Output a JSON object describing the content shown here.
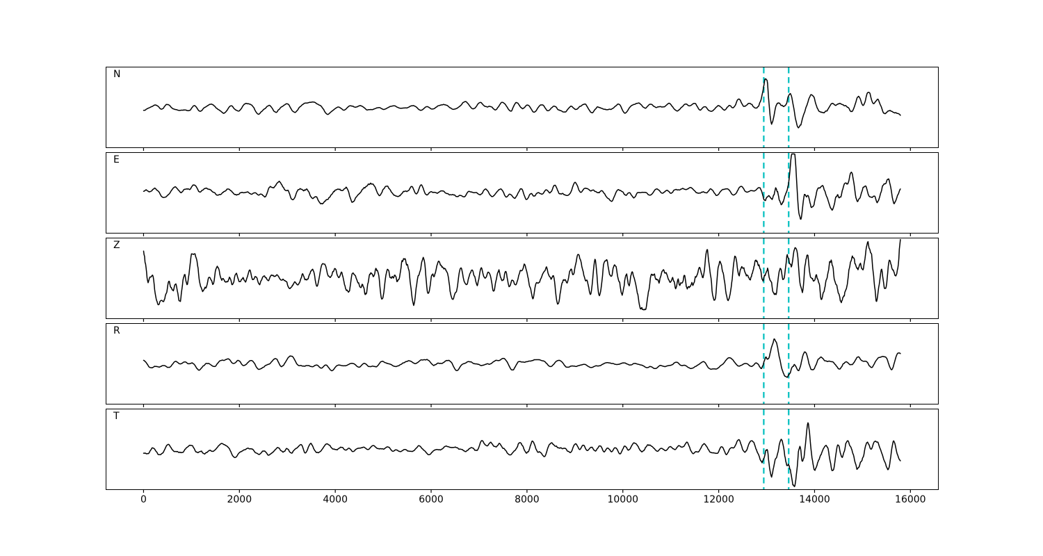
{
  "figure": {
    "background": "#ffffff",
    "border_color": "#000000",
    "trace_color": "#000000"
  },
  "chart_data": {
    "type": "line",
    "title": "",
    "xlabel": "",
    "ylabel": "",
    "x_ticks": [
      0,
      2000,
      4000,
      6000,
      8000,
      10000,
      12000,
      14000,
      16000
    ],
    "xlim": [
      -790,
      16590
    ],
    "x_start": 0,
    "x_end": 15790,
    "grid": false,
    "legend": "none",
    "vlines": {
      "x1": 12940,
      "x2": 13460,
      "color": "#00BFBF",
      "style": "dashed"
    },
    "panels": [
      {
        "label": "N",
        "seed": 11,
        "noise": 8,
        "event": 48,
        "event_x": 13060,
        "event2": 16,
        "event2_x": 13600,
        "coda": 16,
        "coda_end": 0.7,
        "smooth": 6
      },
      {
        "label": "E",
        "seed": 22,
        "noise": 11,
        "event": 36,
        "event_x": 13080,
        "event2": 30,
        "event2_x": 13580,
        "coda": 21,
        "coda_end": 0.6,
        "smooth": 5
      },
      {
        "label": "Z",
        "seed": 33,
        "noise": 30,
        "event": 14,
        "event_x": 13100,
        "event2": 10,
        "event2_x": 13600,
        "coda": 31,
        "coda_end": 0.95,
        "smooth": 4
      },
      {
        "label": "R",
        "seed": 44,
        "noise": 8,
        "event": 54,
        "event_x": 13060,
        "event2": 12,
        "event2_x": 13560,
        "coda": 13,
        "coda_end": 0.7,
        "smooth": 6
      },
      {
        "label": "T",
        "seed": 55,
        "noise": 10,
        "event": 32,
        "event_x": 13080,
        "event2": 26,
        "event2_x": 13620,
        "coda": 23,
        "coda_end": 0.6,
        "smooth": 5
      }
    ]
  }
}
